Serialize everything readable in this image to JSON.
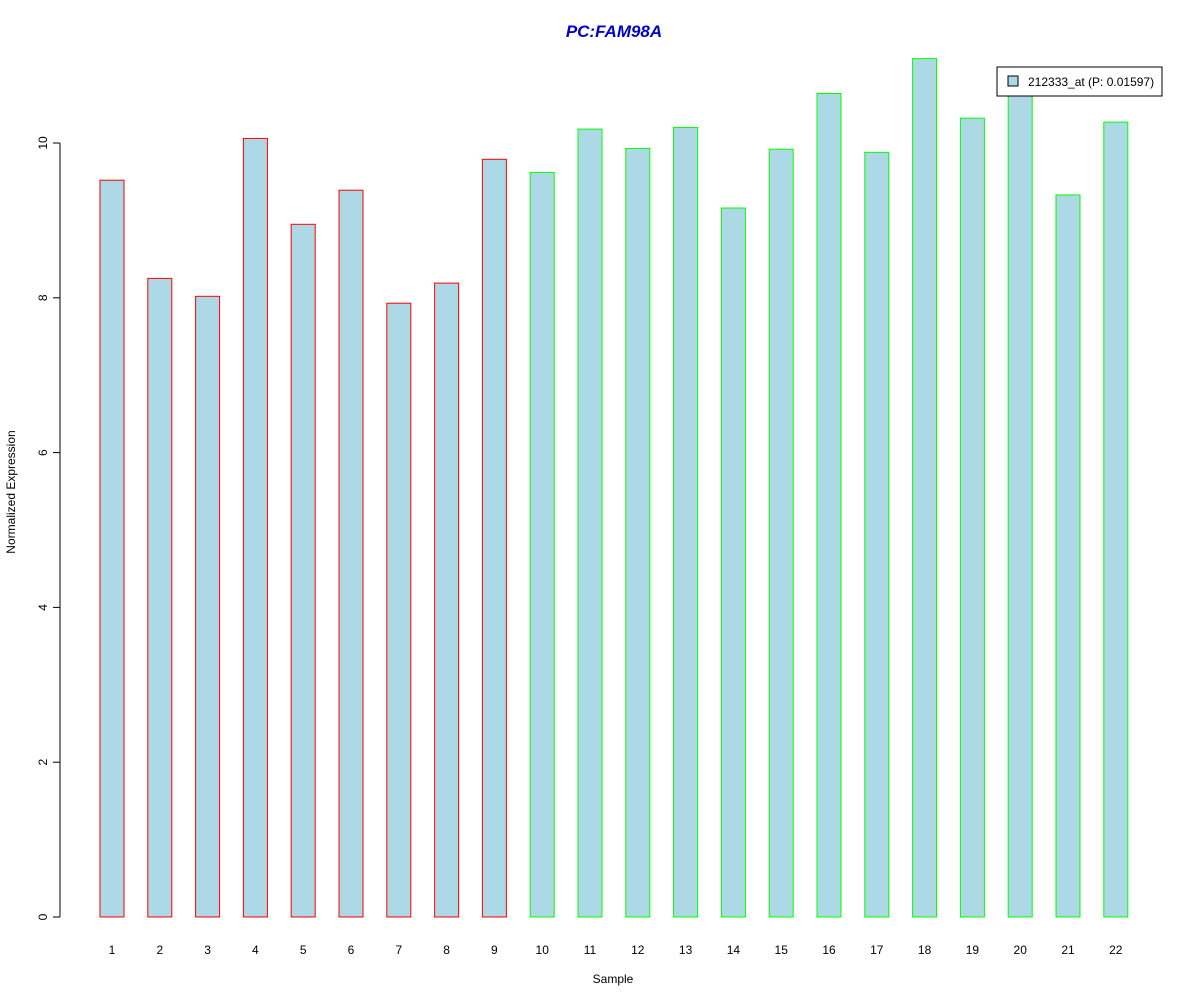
{
  "chart_data": {
    "type": "bar",
    "title": "PC:FAM98A",
    "xlabel": "Sample",
    "ylabel": "Normalized Expression",
    "categories": [
      "1",
      "2",
      "3",
      "4",
      "5",
      "6",
      "7",
      "8",
      "9",
      "10",
      "11",
      "12",
      "13",
      "14",
      "15",
      "16",
      "17",
      "18",
      "19",
      "20",
      "21",
      "22"
    ],
    "series": [
      {
        "name": "212333_at (P: 0.01597)",
        "values": [
          9.52,
          8.25,
          8.02,
          10.06,
          8.95,
          9.39,
          7.93,
          8.19,
          9.79,
          9.62,
          10.18,
          9.93,
          10.2,
          9.16,
          9.92,
          10.64,
          9.88,
          11.09,
          10.32,
          10.68,
          9.33,
          10.27
        ]
      }
    ],
    "group_of_bar": [
      "red",
      "red",
      "red",
      "red",
      "red",
      "red",
      "red",
      "red",
      "red",
      "green",
      "green",
      "green",
      "green",
      "green",
      "green",
      "green",
      "green",
      "green",
      "green",
      "green",
      "green",
      "green"
    ],
    "y_ticks": [
      0,
      2,
      4,
      6,
      8,
      10
    ],
    "ylim": [
      0,
      11.1
    ],
    "grid": false,
    "legend_position": "top-right",
    "colors": {
      "bar_fill": "#add8e6",
      "red": "#ff0000",
      "green": "#00ff00",
      "title": "#0000cd",
      "axis": "#000000"
    }
  }
}
